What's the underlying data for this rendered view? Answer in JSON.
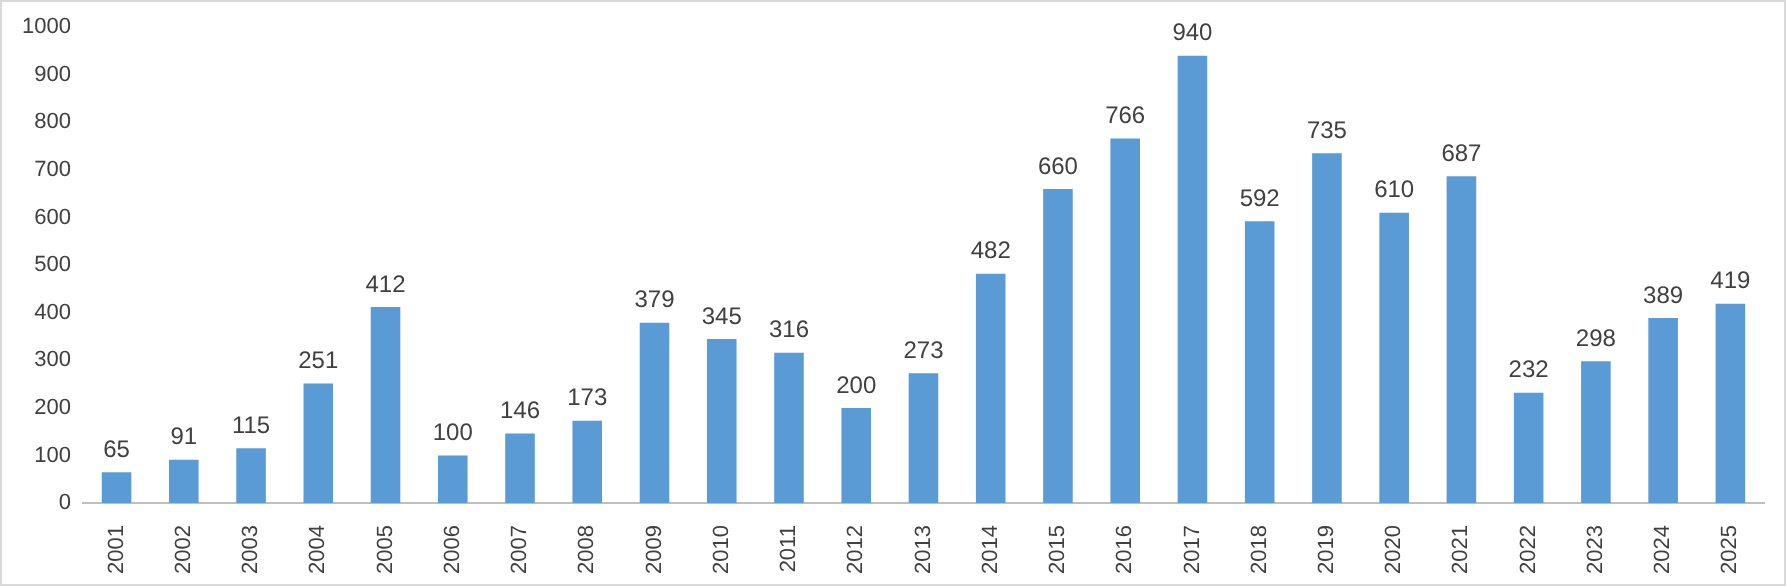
{
  "chart_data": {
    "type": "bar",
    "categories": [
      "2001",
      "2002",
      "2003",
      "2004",
      "2005",
      "2006",
      "2007",
      "2008",
      "2009",
      "2010",
      "2011",
      "2012",
      "2013",
      "2014",
      "2015",
      "2016",
      "2017",
      "2018",
      "2019",
      "2020",
      "2021",
      "2022",
      "2023",
      "2024",
      "2025"
    ],
    "values": [
      65,
      91,
      115,
      251,
      412,
      100,
      146,
      173,
      379,
      345,
      316,
      200,
      273,
      482,
      660,
      766,
      940,
      592,
      735,
      610,
      687,
      232,
      298,
      389,
      419
    ],
    "color": "#5b9bd5",
    "ylim": [
      0,
      1000
    ],
    "yticks": [
      0,
      100,
      200,
      300,
      400,
      500,
      600,
      700,
      800,
      900,
      1000
    ],
    "grid": false,
    "legend": false,
    "data_labels": true
  }
}
